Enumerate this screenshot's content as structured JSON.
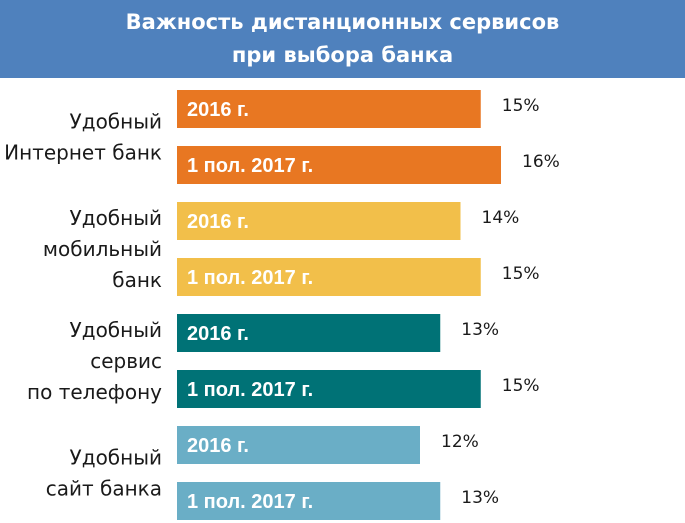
{
  "chart_data": {
    "type": "bar",
    "orientation": "horizontal",
    "title_lines": [
      "Важность дистанционных сервисов",
      "при выбора банка"
    ],
    "value_suffix": "%",
    "grid": false,
    "groups": [
      {
        "label_lines": [
          "Удобный",
          "Интернет банк"
        ],
        "color": "#e87722",
        "bars": [
          {
            "period": "2016 г.",
            "value": 15
          },
          {
            "period": "1 пол. 2017 г.",
            "value": 16
          }
        ]
      },
      {
        "label_lines": [
          "Удобный",
          "мобильный",
          "банк"
        ],
        "color": "#f2bf4a",
        "bars": [
          {
            "period": "2016 г.",
            "value": 14
          },
          {
            "period": "1 пол. 2017 г.",
            "value": 15
          }
        ]
      },
      {
        "label_lines": [
          "Удобный",
          "сервис",
          "по телефону"
        ],
        "color": "#007276",
        "bars": [
          {
            "period": "2016 г.",
            "value": 13
          },
          {
            "period": "1 пол. 2017 г.",
            "value": 15
          }
        ]
      },
      {
        "label_lines": [
          "Удобный",
          "сайт банка"
        ],
        "color": "#6aaec6",
        "bars": [
          {
            "period": "2016 г.",
            "value": 12
          },
          {
            "period": "1 пол. 2017 г.",
            "value": 13
          }
        ]
      }
    ]
  }
}
